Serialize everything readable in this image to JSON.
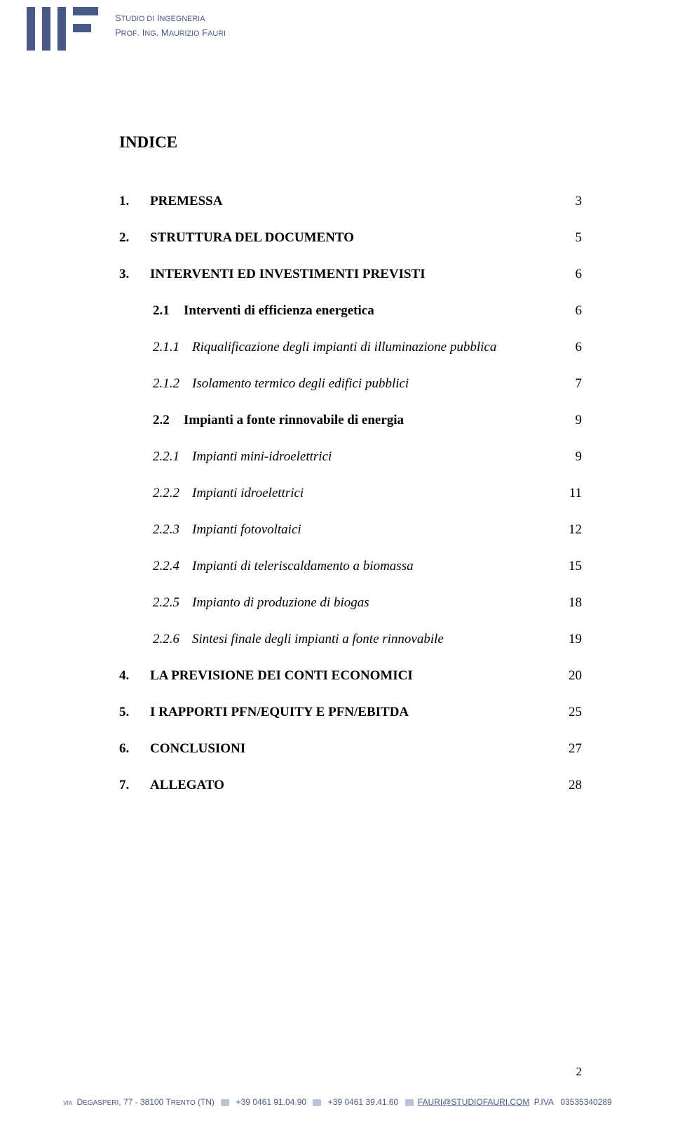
{
  "header": {
    "line1_html": "S<small>TUDIO DI</small> I<small>NGEGNERIA</small>",
    "line2_html": "P<small>ROF</small>. I<small>NG</small>. M<small>AURIZIO</small> F<small>AURI</small>",
    "logo_color": "#4a5a88"
  },
  "title": "INDICE",
  "toc": [
    {
      "num": "1.",
      "text": "PREMESSA",
      "page": "3",
      "level": 0,
      "style": "bold"
    },
    {
      "num": "2.",
      "text": "STRUTTURA DEL DOCUMENTO",
      "page": "5",
      "level": 0,
      "style": "bold"
    },
    {
      "num": "3.",
      "text": "INTERVENTI ED INVESTIMENTI PREVISTI",
      "page": "6",
      "level": 0,
      "style": "bold"
    },
    {
      "num": "2.1",
      "text": "Interventi di efficienza energetica",
      "page": "6",
      "level": 1,
      "style": "bold"
    },
    {
      "num": "2.1.1",
      "text": "Riqualificazione degli impianti di illuminazione pubblica",
      "page": "6",
      "level": 2,
      "style": "italic"
    },
    {
      "num": "2.1.2",
      "text": "Isolamento termico degli edifici pubblici",
      "page": "7",
      "level": 2,
      "style": "italic"
    },
    {
      "num": "2.2",
      "text": "Impianti a fonte rinnovabile di energia",
      "page": "9",
      "level": 1,
      "style": "bold"
    },
    {
      "num": "2.2.1",
      "text": "Impianti mini-idroelettrici",
      "page": "9",
      "level": 2,
      "style": "italic"
    },
    {
      "num": "2.2.2",
      "text": "Impianti idroelettrici",
      "page": "11",
      "level": 2,
      "style": "italic"
    },
    {
      "num": "2.2.3",
      "text": "Impianti fotovoltaici",
      "page": "12",
      "level": 2,
      "style": "italic"
    },
    {
      "num": "2.2.4",
      "text": "Impianti di teleriscaldamento a biomassa",
      "page": "15",
      "level": 2,
      "style": "italic"
    },
    {
      "num": "2.2.5",
      "text": "Impianto di produzione di biogas",
      "page": "18",
      "level": 2,
      "style": "italic"
    },
    {
      "num": "2.2.6",
      "text": "Sintesi finale degli impianti a fonte rinnovabile",
      "page": "19",
      "level": 2,
      "style": "italic"
    },
    {
      "num": "4.",
      "text": "LA PREVISIONE DEI CONTI ECONOMICI",
      "page": "20",
      "level": 0,
      "style": "bold"
    },
    {
      "num": "5.",
      "text": "I RAPPORTI PFN/EQUITY E PFN/EBITDA",
      "page": "25",
      "level": 0,
      "style": "bold"
    },
    {
      "num": "6.",
      "text": "CONCLUSIONI",
      "page": "27",
      "level": 0,
      "style": "bold"
    },
    {
      "num": "7.",
      "text": "ALLEGATO",
      "page": "28",
      "level": 0,
      "style": "bold"
    }
  ],
  "page_number": "2",
  "footer": {
    "address_html": "<span class='sc'>via</span> D<small>EGASPERI</small>, 77 - 38100 T<small>RENTO</small> (TN)",
    "tel": "+39 0461 91.04.90",
    "fax": "+39 0461 39.41.60",
    "email": "FAURI@STUDIOFAURI.COM",
    "piva_label": "P.IVA",
    "piva": "03535340289"
  },
  "colors": {
    "text": "#000000",
    "header_text": "#4a5a88",
    "footer_text": "#4a5a88",
    "background": "#ffffff"
  }
}
